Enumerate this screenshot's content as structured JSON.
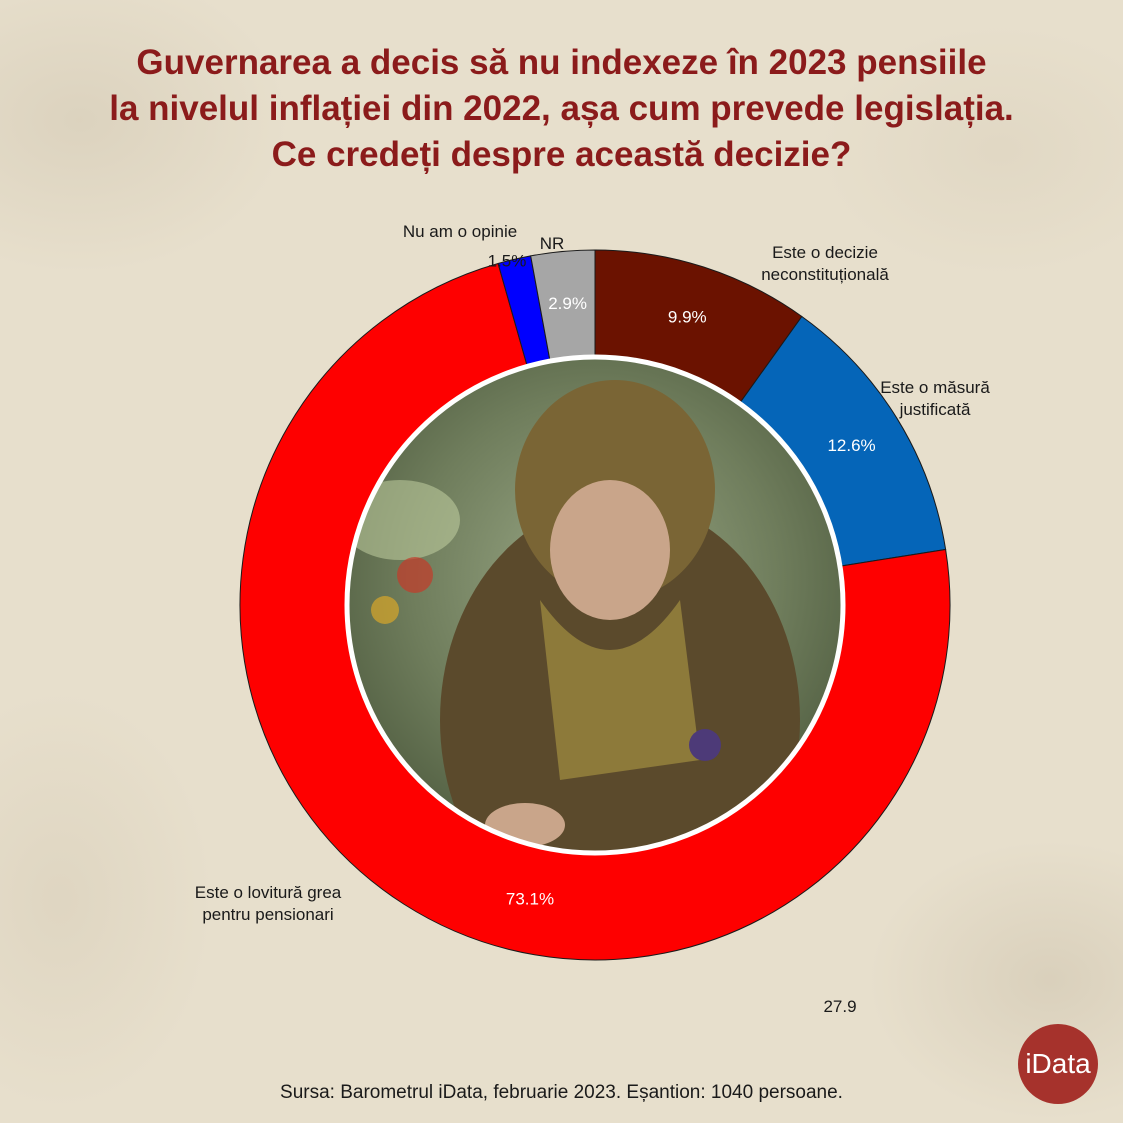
{
  "title_lines": [
    "Guvernarea a decis să nu indexeze în 2023 pensiile",
    "la nivelul inflației din 2022, așa cum prevede legislația.",
    "Ce credeți despre această decizie?"
  ],
  "source": "Sursa: Barometrul iData, februarie 2023. Eșantion: 1040 persoane.",
  "logo": "iData",
  "stray_number": "27.9",
  "chart_data": {
    "type": "pie",
    "donut": true,
    "slices": [
      {
        "category": "Este o decizie neconstituțională",
        "label_lines": [
          "Este o decizie",
          "neconstituțională"
        ],
        "value": 9.9,
        "value_label": "9.9%",
        "color": "#6b1200"
      },
      {
        "category": "Este o măsură justificată",
        "label_lines": [
          "Este o măsură",
          "justificată"
        ],
        "value": 12.6,
        "value_label": "12.6%",
        "color": "#0565b8"
      },
      {
        "category": "Este o lovitură grea pentru pensionari",
        "label_lines": [
          "Este o lovitură grea",
          "pentru pensionari"
        ],
        "value": 73.1,
        "value_label": "73.1%",
        "color": "#fe0000"
      },
      {
        "category": "Nu am o opinie",
        "label_lines": [
          "Nu am o opinie"
        ],
        "value": 1.5,
        "value_label": "1.5%",
        "color": "#0000ff"
      },
      {
        "category": "NR",
        "label_lines": [
          "NR"
        ],
        "value": 2.9,
        "value_label": "2.9%",
        "color": "#a6a6a6"
      }
    ]
  }
}
